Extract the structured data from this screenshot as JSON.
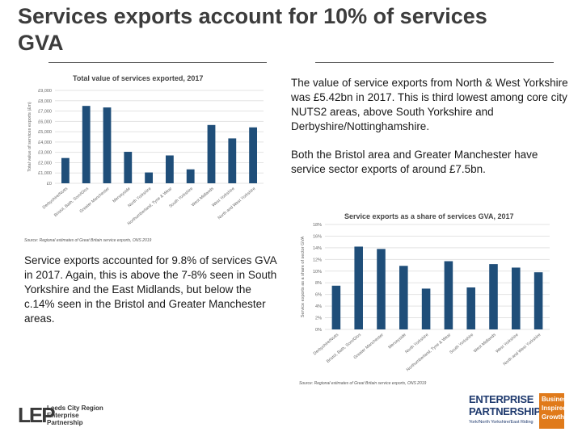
{
  "slide": {
    "title": "Services exports account for 10% of services GVA",
    "para1": "The value of service exports from North & West Yorkshire was £5.42bn in 2017. This is third lowest among core city NUTS2 areas, above South Yorkshire and Derbyshire/Nottinghamshire.",
    "para2": "Both the Bristol area and Greater Manchester have service sector exports of around £7.5bn.",
    "para3": "Service exports accounted for 9.8% of services GVA in 2017. Again, this is above the 7-8% seen in South Yorkshire and the East Midlands, but below the c.14% seen in the Bristol and Greater Manchester areas."
  },
  "logos": {
    "lep_mark": "LEP",
    "lep_line1": "Leeds City Region",
    "lep_line2": "Enterprise",
    "lep_line3": "Partnership",
    "ep_line1": "ENTERPRISE",
    "ep_line2": "PARTNERSHIP",
    "ep_sub": "York/North Yorkshire/East Riding",
    "ep_box1": "Business",
    "ep_box2": "Inspired",
    "ep_box3": "Growth"
  },
  "colors": {
    "bar": "#1f4e79",
    "grid": "#e3e3e3",
    "axis_text": "#666666"
  },
  "chart_data": [
    {
      "type": "bar",
      "title": "Total value of services exported, 2017",
      "ylabel": "Total value of services exports (£m)",
      "source": "Source: Regional estimates of Great Britain service exports, ONS 2019",
      "ylim": [
        0,
        9000
      ],
      "yticks": [
        "£0",
        "£1,000",
        "£2,000",
        "£3,000",
        "£4,000",
        "£5,000",
        "£6,000",
        "£7,000",
        "£8,000",
        "£9,000"
      ],
      "categories": [
        "Derbyshire/Notts",
        "Bristol, Bath, Som/Glos",
        "Greater Manchester",
        "Merseyside",
        "North Yorkshire",
        "Northumberland, Tyne & Wear",
        "South Yorkshire",
        "West Midlands",
        "West Yorkshire",
        "North and West Yorkshire"
      ],
      "values": [
        2450,
        7500,
        7350,
        3050,
        1050,
        2700,
        1350,
        5650,
        4350,
        5420
      ]
    },
    {
      "type": "bar",
      "title": "Service exports as a share of services GVA, 2017",
      "ylabel": "Service exports as a share of sector GVA",
      "source": "Source: Regional estimates of Great Britain service exports, ONS 2019",
      "ylim": [
        0,
        18
      ],
      "yticks": [
        "0%",
        "2%",
        "4%",
        "6%",
        "8%",
        "10%",
        "12%",
        "14%",
        "16%",
        "18%"
      ],
      "categories": [
        "Derbyshire/Notts",
        "Bristol, Bath, Som/Glos",
        "Greater Manchester",
        "Merseyside",
        "North Yorkshire",
        "Northumberland, Tyne & Wear",
        "South Yorkshire",
        "West Midlands",
        "West Yorkshire",
        "North and West Yorkshire"
      ],
      "values": [
        7.5,
        14.2,
        13.8,
        10.9,
        7.0,
        11.7,
        7.2,
        11.2,
        10.6,
        9.8
      ]
    }
  ]
}
